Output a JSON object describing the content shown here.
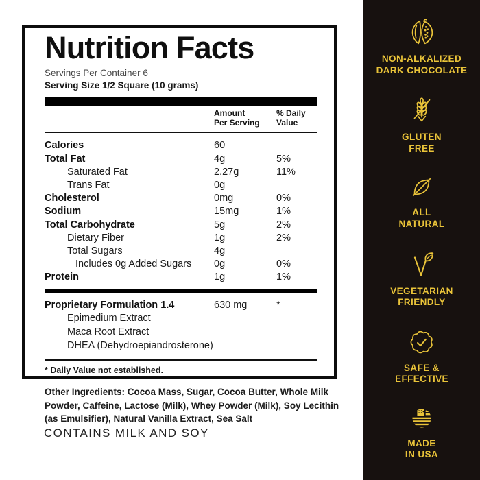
{
  "label": {
    "title": "Nutrition Facts",
    "servings_per_container": "Servings Per Container 6",
    "serving_size": "Serving Size 1/2 Square (10 grams)",
    "columns": {
      "amount_line1": "Amount",
      "amount_line2": "Per Serving",
      "dv_line1": "% Daily",
      "dv_line2": "Value"
    },
    "rows": [
      {
        "name": "Calories",
        "amount": "60",
        "dv": "",
        "bold": true,
        "indent": 0
      },
      {
        "name": "Total Fat",
        "amount": "4g",
        "dv": "5%",
        "bold": true,
        "indent": 0
      },
      {
        "name": "Saturated Fat",
        "amount": "2.27g",
        "dv": "11%",
        "bold": false,
        "indent": 1
      },
      {
        "name": "Trans Fat",
        "amount": "0g",
        "dv": "",
        "bold": false,
        "indent": 1
      },
      {
        "name": "Cholesterol",
        "amount": "0mg",
        "dv": "0%",
        "bold": true,
        "indent": 0
      },
      {
        "name": "Sodium",
        "amount": "15mg",
        "dv": "1%",
        "bold": true,
        "indent": 0
      },
      {
        "name": "Total Carbohydrate",
        "amount": "5g",
        "dv": "2%",
        "bold": true,
        "indent": 0
      },
      {
        "name": "Dietary Fiber",
        "amount": "1g",
        "dv": "2%",
        "bold": false,
        "indent": 1
      },
      {
        "name": "Total Sugars",
        "amount": "4g",
        "dv": "",
        "bold": false,
        "indent": 1
      },
      {
        "name": "Includes 0g Added Sugars",
        "amount": "0g",
        "dv": "0%",
        "bold": false,
        "indent": 2
      },
      {
        "name": "Protein",
        "amount": "1g",
        "dv": "1%",
        "bold": true,
        "indent": 0
      }
    ],
    "proprietary": {
      "name": "Proprietary Formulation 1.4",
      "amount": "630 mg",
      "dv": "*",
      "ingredients": [
        "Epimedium Extract",
        "Maca Root Extract",
        "DHEA (Dehydroepiandrosterone)"
      ]
    },
    "footnote": "* Daily Value not established.",
    "other_ingredients_lines": [
      "Other Ingredients: Cocoa Mass, Sugar, Cocoa Butter, Whole Milk",
      "Powder, Caffeine, Lactose (Milk), Whey Powder (Milk), Soy Lecithin",
      "(as Emulsifier), Natural Vanilla Extract, Sea Salt"
    ],
    "contains_statement": "CONTAINS MILK AND SOY"
  },
  "sidebar": {
    "background_color": "#17110f",
    "accent_color": "#e9c339",
    "features": [
      {
        "icon": "cocoa-pods-icon",
        "lines": [
          "NON-ALKALIZED",
          "DARK CHOCOLATE"
        ]
      },
      {
        "icon": "wheat-crossed-icon",
        "lines": [
          "GLUTEN",
          "FREE"
        ]
      },
      {
        "icon": "leaf-icon",
        "lines": [
          "ALL",
          "NATURAL"
        ]
      },
      {
        "icon": "vegetarian-v-leaf-icon",
        "lines": [
          "VEGETARIAN",
          "FRIENDLY"
        ]
      },
      {
        "icon": "badge-check-icon",
        "lines": [
          "SAFE &",
          "EFFECTIVE"
        ]
      },
      {
        "icon": "usa-flag-icon",
        "lines": [
          "MADE",
          "IN USA"
        ]
      }
    ]
  }
}
